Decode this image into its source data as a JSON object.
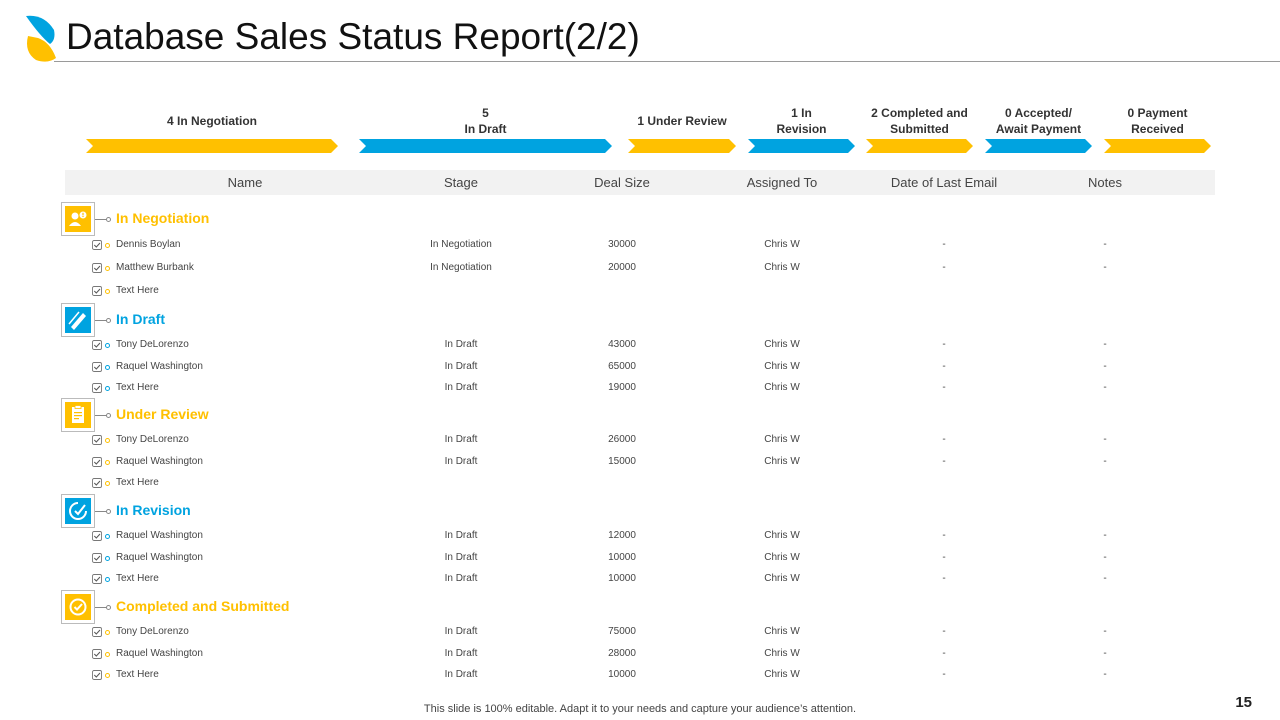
{
  "slide": {
    "title": "Database Sales Status Report(2/2)",
    "footer": "This slide is 100% editable. Adapt it to your needs and capture your audience’s attention.",
    "page_number": "15"
  },
  "colors": {
    "yellow": "#FFC000",
    "blue": "#00A3E0"
  },
  "stages": [
    {
      "label": "4 In Negotiation",
      "color": "yellow"
    },
    {
      "label": "5\nIn Draft",
      "color": "blue"
    },
    {
      "label": "1 Under Review",
      "color": "yellow"
    },
    {
      "label": "1 In\nRevision",
      "color": "blue"
    },
    {
      "label": "2 Completed and\nSubmitted",
      "color": "yellow"
    },
    {
      "label": "0 Accepted/\nAwait Payment",
      "color": "blue"
    },
    {
      "label": "0 Payment\nReceived",
      "color": "yellow"
    }
  ],
  "columns": [
    "Name",
    "Stage",
    "Deal Size",
    "Assigned To",
    "Date of Last Email",
    "Notes"
  ],
  "sections": [
    {
      "title": "In Negotiation",
      "color": "yellow",
      "icon": "user-alert-icon",
      "rows": [
        {
          "name": "Dennis Boylan",
          "stage": "In Negotiation",
          "deal": "30000",
          "assigned": "Chris W",
          "email": "-",
          "notes": "-"
        },
        {
          "name": "Matthew Burbank",
          "stage": "In Negotiation",
          "deal": "20000",
          "assigned": "Chris W",
          "email": "-",
          "notes": "-"
        },
        {
          "name": "Text Here",
          "stage": "",
          "deal": "",
          "assigned": "",
          "email": "",
          "notes": ""
        }
      ]
    },
    {
      "title": "In Draft",
      "color": "blue",
      "icon": "pencil-icon",
      "rows": [
        {
          "name": "Tony DeLorenzo",
          "stage": "In Draft",
          "deal": "43000",
          "assigned": "Chris W",
          "email": "-",
          "notes": "-"
        },
        {
          "name": "Raquel Washington",
          "stage": "In Draft",
          "deal": "65000",
          "assigned": "Chris W",
          "email": "-",
          "notes": "-"
        },
        {
          "name": "Text Here",
          "stage": "In Draft",
          "deal": "19000",
          "assigned": "Chris W",
          "email": "-",
          "notes": "-"
        }
      ]
    },
    {
      "title": "Under Review",
      "color": "yellow",
      "icon": "clipboard-icon",
      "rows": [
        {
          "name": "Tony DeLorenzo",
          "stage": "In Draft",
          "deal": "26000",
          "assigned": "Chris W",
          "email": "-",
          "notes": "-"
        },
        {
          "name": "Raquel Washington",
          "stage": "In Draft",
          "deal": "15000",
          "assigned": "Chris W",
          "email": "-",
          "notes": "-"
        },
        {
          "name": "Text Here",
          "stage": "",
          "deal": "",
          "assigned": "",
          "email": "",
          "notes": ""
        }
      ]
    },
    {
      "title": "In Revision",
      "color": "blue",
      "icon": "revision-icon",
      "rows": [
        {
          "name": "Raquel Washington",
          "stage": "In Draft",
          "deal": "12000",
          "assigned": "Chris W",
          "email": "-",
          "notes": "-"
        },
        {
          "name": "Raquel Washington",
          "stage": "In Draft",
          "deal": "10000",
          "assigned": "Chris W",
          "email": "-",
          "notes": "-"
        },
        {
          "name": "Text Here",
          "stage": "In Draft",
          "deal": "10000",
          "assigned": "Chris W",
          "email": "-",
          "notes": "-"
        }
      ]
    },
    {
      "title": "Completed and Submitted",
      "color": "yellow",
      "icon": "completed-check-icon",
      "rows": [
        {
          "name": "Tony DeLorenzo",
          "stage": "In Draft",
          "deal": "75000",
          "assigned": "Chris W",
          "email": "-",
          "notes": "-"
        },
        {
          "name": "Raquel Washington",
          "stage": "In Draft",
          "deal": "28000",
          "assigned": "Chris W",
          "email": "-",
          "notes": "-"
        },
        {
          "name": "Text Here",
          "stage": "In Draft",
          "deal": "10000",
          "assigned": "Chris W",
          "email": "-",
          "notes": "-"
        }
      ]
    }
  ]
}
